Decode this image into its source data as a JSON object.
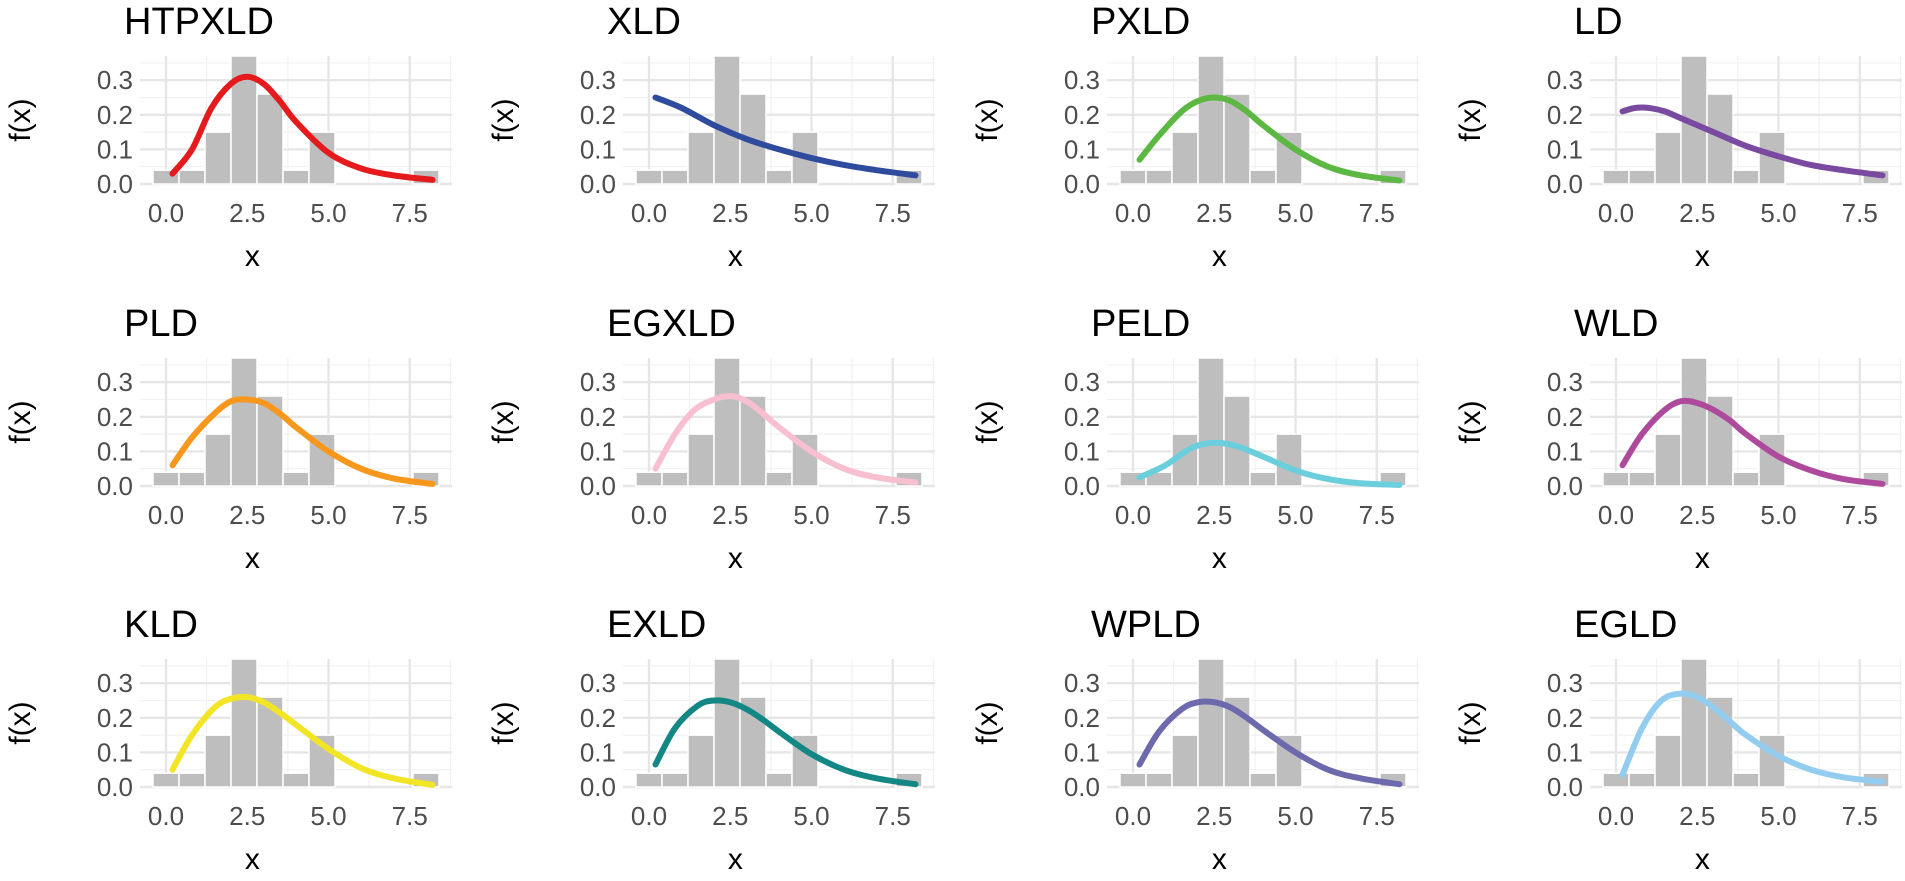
{
  "chart_data": {
    "type": "faceted histogram with fitted density curves",
    "layout": {
      "rows": 3,
      "cols": 4
    },
    "xlabel": "x",
    "ylabel": "f(x)",
    "xlim": [
      -0.8,
      8.8
    ],
    "ylim": [
      0,
      0.37
    ],
    "x_ticks": [
      0.0,
      2.5,
      5.0,
      7.5
    ],
    "x_tick_labels": [
      "0.0",
      "2.5",
      "5.0",
      "7.5"
    ],
    "y_ticks": [
      0.0,
      0.1,
      0.2,
      0.3
    ],
    "y_tick_labels": [
      "0.0",
      "0.1",
      "0.2",
      "0.3"
    ],
    "grid": true,
    "bar_color": "#bebebe",
    "histogram": {
      "bin_width": 0.8,
      "bin_starts": [
        -0.4,
        0.4,
        1.2,
        2.0,
        2.8,
        3.6,
        4.4,
        5.2,
        6.0,
        6.8,
        7.6
      ],
      "densities": [
        0.04,
        0.04,
        0.15,
        0.37,
        0.26,
        0.04,
        0.15,
        0.0,
        0.0,
        0.0,
        0.04
      ]
    },
    "panels": [
      {
        "title": "HTPXLD",
        "color": "#e41a1c",
        "curve": {
          "x": [
            0.2,
            0.8,
            1.4,
            2.0,
            2.5,
            3.0,
            3.5,
            4.0,
            5.0,
            6.0,
            7.0,
            8.2
          ],
          "y": [
            0.03,
            0.1,
            0.22,
            0.29,
            0.31,
            0.29,
            0.24,
            0.18,
            0.09,
            0.045,
            0.025,
            0.012
          ]
        }
      },
      {
        "title": "XLD",
        "color": "#2f4b9e",
        "curve": {
          "x": [
            0.2,
            1.0,
            2.0,
            3.0,
            4.0,
            5.0,
            6.0,
            7.0,
            8.2
          ],
          "y": [
            0.25,
            0.22,
            0.17,
            0.13,
            0.1,
            0.075,
            0.055,
            0.04,
            0.025
          ]
        }
      },
      {
        "title": "PXLD",
        "color": "#5cb843",
        "curve": {
          "x": [
            0.2,
            0.8,
            1.5,
            2.0,
            2.5,
            3.0,
            3.5,
            4.0,
            5.0,
            6.0,
            7.0,
            8.2
          ],
          "y": [
            0.07,
            0.14,
            0.21,
            0.24,
            0.25,
            0.24,
            0.21,
            0.17,
            0.1,
            0.05,
            0.025,
            0.01
          ]
        }
      },
      {
        "title": "LD",
        "color": "#7a4aa0",
        "curve": {
          "x": [
            0.2,
            0.6,
            1.0,
            1.5,
            2.0,
            3.0,
            4.0,
            5.0,
            6.0,
            7.0,
            8.2
          ],
          "y": [
            0.21,
            0.22,
            0.22,
            0.21,
            0.19,
            0.15,
            0.11,
            0.08,
            0.055,
            0.04,
            0.025
          ]
        }
      },
      {
        "title": "PLD",
        "color": "#f7971c",
        "curve": {
          "x": [
            0.2,
            0.8,
            1.5,
            2.0,
            2.5,
            3.0,
            3.5,
            4.0,
            5.0,
            6.0,
            7.0,
            8.2
          ],
          "y": [
            0.06,
            0.14,
            0.21,
            0.245,
            0.25,
            0.24,
            0.21,
            0.17,
            0.1,
            0.05,
            0.022,
            0.006
          ]
        }
      },
      {
        "title": "EGXLD",
        "color": "#f7bfd0",
        "curve": {
          "x": [
            0.2,
            0.8,
            1.4,
            2.0,
            2.5,
            3.0,
            3.5,
            4.0,
            5.0,
            6.0,
            7.0,
            8.2
          ],
          "y": [
            0.05,
            0.15,
            0.22,
            0.25,
            0.26,
            0.245,
            0.21,
            0.17,
            0.1,
            0.05,
            0.025,
            0.01
          ]
        }
      },
      {
        "title": "PELD",
        "color": "#6bcedc",
        "curve": {
          "x": [
            0.2,
            1.0,
            1.8,
            2.5,
            3.2,
            4.0,
            5.0,
            6.0,
            7.0,
            8.2
          ],
          "y": [
            0.025,
            0.06,
            0.11,
            0.125,
            0.115,
            0.085,
            0.045,
            0.02,
            0.008,
            0.003
          ]
        }
      },
      {
        "title": "WLD",
        "color": "#ae4a9c",
        "curve": {
          "x": [
            0.2,
            0.8,
            1.5,
            2.0,
            2.5,
            3.0,
            3.5,
            4.0,
            5.0,
            6.0,
            7.0,
            8.2
          ],
          "y": [
            0.06,
            0.15,
            0.22,
            0.245,
            0.24,
            0.22,
            0.19,
            0.15,
            0.085,
            0.045,
            0.02,
            0.006
          ]
        }
      },
      {
        "title": "KLD",
        "color": "#f1e525",
        "curve": {
          "x": [
            0.2,
            0.8,
            1.5,
            2.0,
            2.5,
            3.0,
            3.5,
            4.0,
            5.0,
            6.0,
            7.0,
            8.2
          ],
          "y": [
            0.05,
            0.15,
            0.23,
            0.255,
            0.26,
            0.245,
            0.215,
            0.18,
            0.11,
            0.055,
            0.025,
            0.006
          ]
        }
      },
      {
        "title": "EXLD",
        "color": "#138784",
        "curve": {
          "x": [
            0.2,
            0.8,
            1.5,
            2.0,
            2.5,
            3.0,
            3.5,
            4.0,
            5.0,
            6.0,
            7.0,
            8.2
          ],
          "y": [
            0.065,
            0.17,
            0.235,
            0.25,
            0.245,
            0.225,
            0.195,
            0.16,
            0.095,
            0.05,
            0.025,
            0.008
          ]
        }
      },
      {
        "title": "WPLD",
        "color": "#6c6aac",
        "curve": {
          "x": [
            0.2,
            0.8,
            1.5,
            2.0,
            2.5,
            3.0,
            3.5,
            4.0,
            5.0,
            6.0,
            7.0,
            8.2
          ],
          "y": [
            0.065,
            0.16,
            0.225,
            0.245,
            0.245,
            0.23,
            0.2,
            0.165,
            0.1,
            0.05,
            0.025,
            0.008
          ]
        }
      },
      {
        "title": "EGLD",
        "color": "#92cdf0",
        "curve": {
          "x": [
            0.2,
            0.8,
            1.4,
            2.0,
            2.5,
            3.0,
            3.5,
            4.0,
            5.0,
            6.0,
            7.0,
            8.2
          ],
          "y": [
            0.035,
            0.17,
            0.25,
            0.27,
            0.26,
            0.23,
            0.19,
            0.15,
            0.09,
            0.05,
            0.028,
            0.015
          ]
        }
      }
    ]
  }
}
